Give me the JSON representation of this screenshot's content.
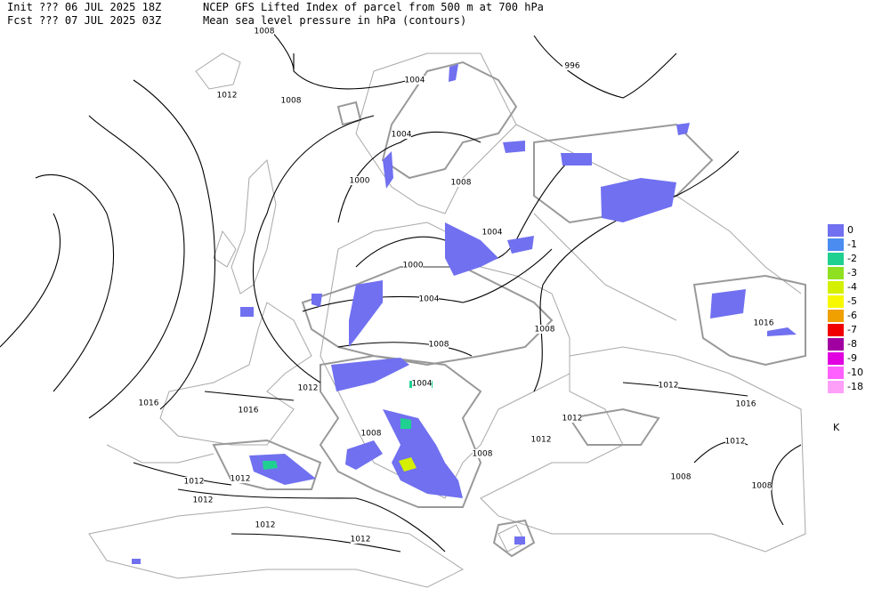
{
  "header": {
    "init_label": "Init",
    "init": "??? 06 JUL 2025 18Z",
    "fcst_label": "Fcst",
    "fcst": "??? 07 JUL 2025 03Z",
    "title": "NCEP GFS Lifted Index of parcel from 500 m at 700 hPa",
    "subtitle": "Mean sea level pressure in hPa (contours)"
  },
  "contour_labels": [
    "1008",
    "996",
    "1004",
    "1012",
    "1008",
    "1004",
    "1000",
    "1008",
    "1004",
    "1000",
    "1004",
    "1008",
    "1008",
    "1016",
    "1012",
    "1004",
    "1012",
    "1016",
    "1016",
    "1012",
    "1016",
    "1008",
    "1012",
    "1012",
    "1008",
    "1012",
    "1012",
    "1008",
    "1008",
    "1012",
    "1012",
    "1012"
  ],
  "legend": {
    "unit": "K",
    "items": [
      {
        "label": "0",
        "color": "#7070f0"
      },
      {
        "label": "-1",
        "color": "#4a8cf0"
      },
      {
        "label": "-2",
        "color": "#20d090"
      },
      {
        "label": "-3",
        "color": "#8ee020"
      },
      {
        "label": "-4",
        "color": "#d4f000"
      },
      {
        "label": "-5",
        "color": "#f8f800"
      },
      {
        "label": "-6",
        "color": "#f0a000"
      },
      {
        "label": "-7",
        "color": "#f00000"
      },
      {
        "label": "-8",
        "color": "#a000a0"
      },
      {
        "label": "-9",
        "color": "#e000e0"
      },
      {
        "label": "-10",
        "color": "#ff60ff"
      },
      {
        "label": "-18",
        "color": "#ffa0f8"
      }
    ]
  }
}
